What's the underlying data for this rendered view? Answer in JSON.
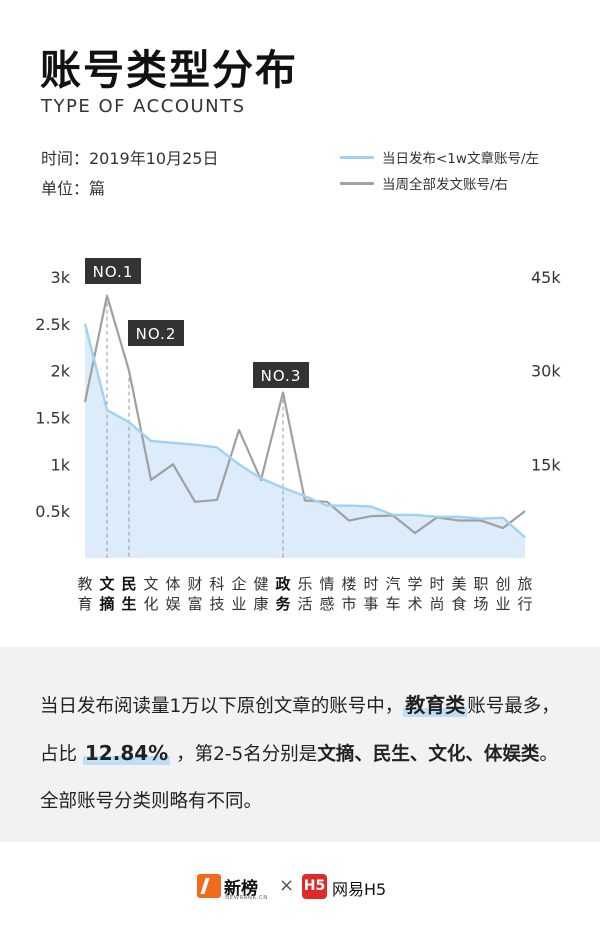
{
  "header": {
    "title": "账号类型分布",
    "subtitle": "TYPE OF ACCOUNTS",
    "time": "时间：2019年10月25日",
    "unit": "单位：篇"
  },
  "legend": [
    {
      "label": "当日发布<1w文章账号/左",
      "color": "#9fd2f2"
    },
    {
      "label": "当周全部发文账号/右",
      "color": "#a0a0a0"
    }
  ],
  "chart_data": {
    "type": "area+line",
    "categories": [
      "教育",
      "文摘",
      "民生",
      "文化",
      "体娱",
      "财富",
      "科技",
      "企业",
      "健康",
      "政务",
      "乐活",
      "情感",
      "楼市",
      "时事",
      "汽车",
      "学术",
      "时尚",
      "美食",
      "职场",
      "创业",
      "旅行"
    ],
    "bold_categories": [
      "文摘",
      "民生",
      "政务"
    ],
    "series": [
      {
        "name": "当日发布<1w文章账号/左",
        "axis": "left",
        "color": "#9fd2f2",
        "values": [
          2500,
          1580,
          1450,
          1250,
          1230,
          1210,
          1180,
          1000,
          850,
          750,
          660,
          560,
          560,
          550,
          460,
          460,
          440,
          440,
          420,
          430,
          220
        ]
      },
      {
        "name": "当周全部发文账号/右",
        "axis": "right",
        "color": "#a0a0a0",
        "values": [
          25000,
          42000,
          30000,
          12500,
          15000,
          9000,
          9300,
          20500,
          12500,
          26500,
          9200,
          9000,
          6000,
          6700,
          6800,
          4000,
          6500,
          6000,
          6000,
          4800,
          7500
        ]
      }
    ],
    "left_axis": {
      "ticks": [
        "0.5k",
        "1k",
        "1.5k",
        "2k",
        "2.5k",
        "3k"
      ],
      "ylim": [
        0,
        3000
      ]
    },
    "right_axis": {
      "ticks": [
        "15k",
        "30k",
        "45k"
      ],
      "ylim": [
        0,
        45000
      ]
    },
    "annotations": [
      {
        "label": "NO.1",
        "category": "文摘"
      },
      {
        "label": "NO.2",
        "category": "民生"
      },
      {
        "label": "NO.3",
        "category": "政务"
      }
    ]
  },
  "summary": {
    "p1": "当日发布阅读量1万以下原创文章的账号中，",
    "edu": "教育类",
    "p2": "账号最多，占比 ",
    "pct": "12.84%",
    "p3": " ，第2-5名分别是",
    "top": "文摘、民生、文化、体娱类",
    "p4": "。全部账号分类则略有不同。"
  },
  "footer": {
    "brand1": "新榜",
    "brand1_sub": "NEWRANK.CN",
    "times": "×",
    "logo2": "H5",
    "brand2": "网易H5"
  }
}
